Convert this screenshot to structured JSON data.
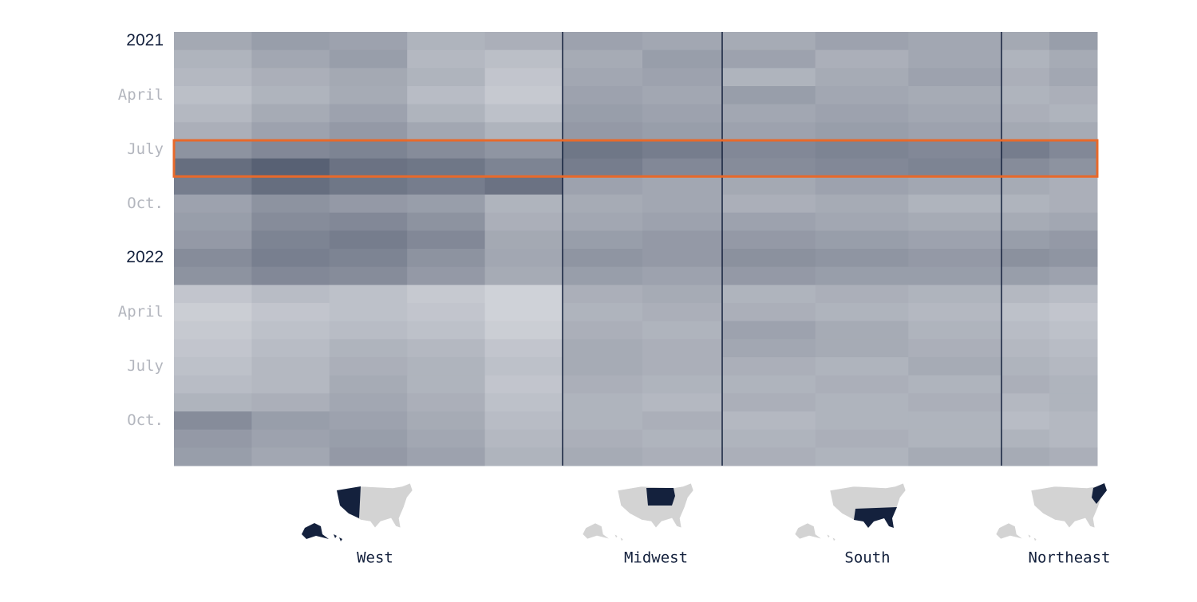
{
  "chart_data": {
    "type": "heatmap",
    "y_categories": [
      "2021",
      null,
      null,
      "April",
      null,
      null,
      "July",
      null,
      null,
      "Oct.",
      null,
      null,
      "2022",
      null,
      null,
      "April",
      null,
      null,
      "July",
      null,
      null,
      "Oct.",
      null,
      null
    ],
    "zlim": [
      0,
      100
    ],
    "colorscale": [
      "#f4f5f7",
      "#0f1b36"
    ],
    "highlight": {
      "rows": [
        6,
        7
      ],
      "color": "#e8692a"
    },
    "series": [
      {
        "name": "West",
        "values": [
          [
            35,
            40,
            38,
            30,
            32
          ],
          [
            30,
            36,
            40,
            28,
            25
          ],
          [
            28,
            32,
            35,
            30,
            22
          ],
          [
            25,
            30,
            34,
            26,
            20
          ],
          [
            28,
            34,
            38,
            30,
            24
          ],
          [
            32,
            38,
            42,
            36,
            30
          ],
          [
            45,
            50,
            52,
            48,
            44
          ],
          [
            62,
            68,
            60,
            58,
            52
          ],
          [
            55,
            62,
            58,
            55,
            60
          ],
          [
            38,
            45,
            42,
            40,
            30
          ],
          [
            40,
            48,
            50,
            45,
            32
          ],
          [
            42,
            52,
            55,
            50,
            35
          ],
          [
            48,
            54,
            52,
            45,
            36
          ],
          [
            45,
            50,
            48,
            42,
            34
          ],
          [
            22,
            26,
            24,
            20,
            16
          ],
          [
            18,
            22,
            24,
            22,
            16
          ],
          [
            20,
            24,
            26,
            24,
            18
          ],
          [
            22,
            26,
            30,
            28,
            22
          ],
          [
            24,
            28,
            32,
            30,
            24
          ],
          [
            26,
            28,
            34,
            30,
            22
          ],
          [
            30,
            32,
            36,
            32,
            24
          ],
          [
            48,
            40,
            38,
            34,
            26
          ],
          [
            42,
            38,
            40,
            36,
            28
          ],
          [
            40,
            36,
            42,
            38,
            30
          ]
        ]
      },
      {
        "name": "Midwest",
        "values": [
          [
            38,
            36
          ],
          [
            34,
            40
          ],
          [
            36,
            38
          ],
          [
            38,
            36
          ],
          [
            40,
            38
          ],
          [
            42,
            40
          ],
          [
            58,
            55
          ],
          [
            55,
            50
          ],
          [
            38,
            36
          ],
          [
            34,
            36
          ],
          [
            36,
            38
          ],
          [
            40,
            42
          ],
          [
            44,
            42
          ],
          [
            40,
            38
          ],
          [
            32,
            34
          ],
          [
            30,
            32
          ],
          [
            32,
            30
          ],
          [
            34,
            32
          ],
          [
            34,
            32
          ],
          [
            32,
            30
          ],
          [
            30,
            28
          ],
          [
            30,
            32
          ],
          [
            32,
            30
          ],
          [
            34,
            32
          ]
        ]
      },
      {
        "name": "South",
        "values": [
          [
            34,
            38,
            36
          ],
          [
            38,
            32,
            36
          ],
          [
            30,
            34,
            38
          ],
          [
            40,
            36,
            34
          ],
          [
            36,
            38,
            36
          ],
          [
            38,
            40,
            38
          ],
          [
            50,
            52,
            50
          ],
          [
            48,
            50,
            52
          ],
          [
            35,
            38,
            36
          ],
          [
            32,
            34,
            30
          ],
          [
            38,
            36,
            34
          ],
          [
            42,
            40,
            38
          ],
          [
            46,
            44,
            42
          ],
          [
            42,
            40,
            40
          ],
          [
            30,
            32,
            30
          ],
          [
            32,
            30,
            28
          ],
          [
            38,
            34,
            30
          ],
          [
            36,
            34,
            32
          ],
          [
            32,
            30,
            34
          ],
          [
            30,
            32,
            30
          ],
          [
            32,
            30,
            32
          ],
          [
            28,
            30,
            30
          ],
          [
            30,
            32,
            30
          ],
          [
            32,
            30,
            34
          ]
        ]
      },
      {
        "name": "Northeast",
        "values": [
          [
            35,
            40
          ],
          [
            30,
            34
          ],
          [
            32,
            36
          ],
          [
            30,
            32
          ],
          [
            32,
            30
          ],
          [
            35,
            34
          ],
          [
            55,
            50
          ],
          [
            48,
            45
          ],
          [
            34,
            32
          ],
          [
            30,
            32
          ],
          [
            34,
            36
          ],
          [
            40,
            42
          ],
          [
            46,
            44
          ],
          [
            40,
            38
          ],
          [
            28,
            26
          ],
          [
            24,
            22
          ],
          [
            26,
            24
          ],
          [
            28,
            26
          ],
          [
            30,
            28
          ],
          [
            32,
            30
          ],
          [
            28,
            30
          ],
          [
            26,
            28
          ],
          [
            30,
            28
          ],
          [
            34,
            32
          ]
        ]
      }
    ]
  }
}
